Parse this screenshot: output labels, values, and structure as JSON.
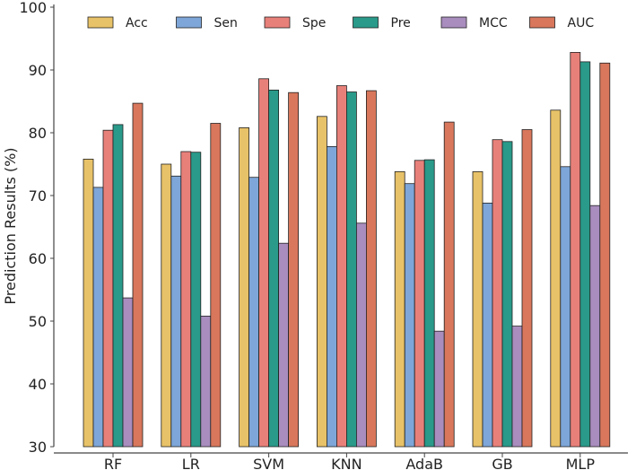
{
  "chart_data": {
    "type": "bar",
    "title": "",
    "xlabel": "",
    "ylabel": "Prediction Results (%)",
    "ylim": [
      30,
      100
    ],
    "yticks": [
      30,
      40,
      50,
      60,
      70,
      80,
      90,
      100
    ],
    "grid": false,
    "legend_position": "top",
    "categories": [
      "RF",
      "LR",
      "SVM",
      "KNN",
      "AdaB",
      "GB",
      "MLP"
    ],
    "series": [
      {
        "name": "Acc",
        "color": "#E8C268",
        "values": [
          75.8,
          75.0,
          80.8,
          82.6,
          73.8,
          73.8,
          83.6
        ]
      },
      {
        "name": "Sen",
        "color": "#7EA6D8",
        "values": [
          71.3,
          73.1,
          72.9,
          77.8,
          71.9,
          68.8,
          74.6
        ]
      },
      {
        "name": "Spe",
        "color": "#E8807A",
        "values": [
          80.4,
          77.0,
          88.6,
          87.5,
          75.6,
          78.9,
          92.8
        ]
      },
      {
        "name": "Pre",
        "color": "#2A9A8A",
        "values": [
          81.3,
          76.9,
          86.8,
          86.5,
          75.7,
          78.6,
          91.3
        ]
      },
      {
        "name": "MCC",
        "color": "#A98DBE",
        "values": [
          53.7,
          50.8,
          62.4,
          65.6,
          48.4,
          49.2,
          68.4
        ]
      },
      {
        "name": "AUC",
        "color": "#D8775C",
        "values": [
          84.7,
          81.5,
          86.4,
          86.7,
          81.7,
          80.5,
          91.1
        ]
      }
    ]
  }
}
